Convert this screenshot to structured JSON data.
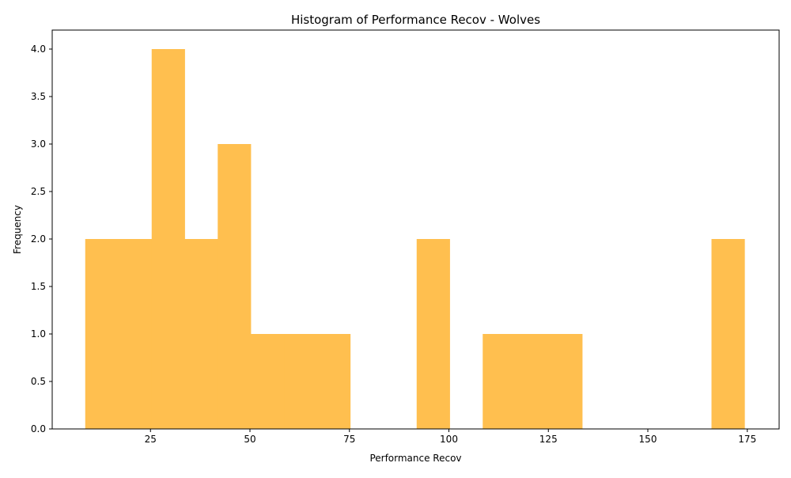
{
  "chart_data": {
    "type": "bar",
    "title": "Histogram of Performance Recov - Wolves",
    "xlabel": "Performance Recov",
    "ylabel": "Frequency",
    "xlim": [
      0.3,
      183.0
    ],
    "ylim": [
      0,
      4.2
    ],
    "x_ticks": [
      25,
      50,
      75,
      100,
      125,
      150,
      175
    ],
    "y_ticks": [
      0.0,
      0.5,
      1.0,
      1.5,
      2.0,
      2.5,
      3.0,
      3.5,
      4.0
    ],
    "bar_color": "#ffbf4f",
    "bins": [
      {
        "start": 8.6,
        "end": 16.9,
        "count": 2
      },
      {
        "start": 16.9,
        "end": 25.3,
        "count": 2
      },
      {
        "start": 25.3,
        "end": 33.6,
        "count": 4
      },
      {
        "start": 33.6,
        "end": 41.9,
        "count": 2
      },
      {
        "start": 41.9,
        "end": 50.2,
        "count": 3
      },
      {
        "start": 50.2,
        "end": 58.6,
        "count": 1
      },
      {
        "start": 58.6,
        "end": 66.9,
        "count": 1
      },
      {
        "start": 66.9,
        "end": 75.2,
        "count": 1
      },
      {
        "start": 75.2,
        "end": 83.5,
        "count": 0
      },
      {
        "start": 83.5,
        "end": 91.9,
        "count": 0
      },
      {
        "start": 91.9,
        "end": 100.2,
        "count": 2
      },
      {
        "start": 100.2,
        "end": 108.5,
        "count": 0
      },
      {
        "start": 108.5,
        "end": 116.8,
        "count": 1
      },
      {
        "start": 116.8,
        "end": 125.2,
        "count": 1
      },
      {
        "start": 125.2,
        "end": 133.5,
        "count": 1
      },
      {
        "start": 133.5,
        "end": 141.8,
        "count": 0
      },
      {
        "start": 141.8,
        "end": 150.1,
        "count": 0
      },
      {
        "start": 150.1,
        "end": 158.5,
        "count": 0
      },
      {
        "start": 158.5,
        "end": 166.0,
        "count": 0
      },
      {
        "start": 166.0,
        "end": 174.3,
        "count": 2
      }
    ]
  }
}
